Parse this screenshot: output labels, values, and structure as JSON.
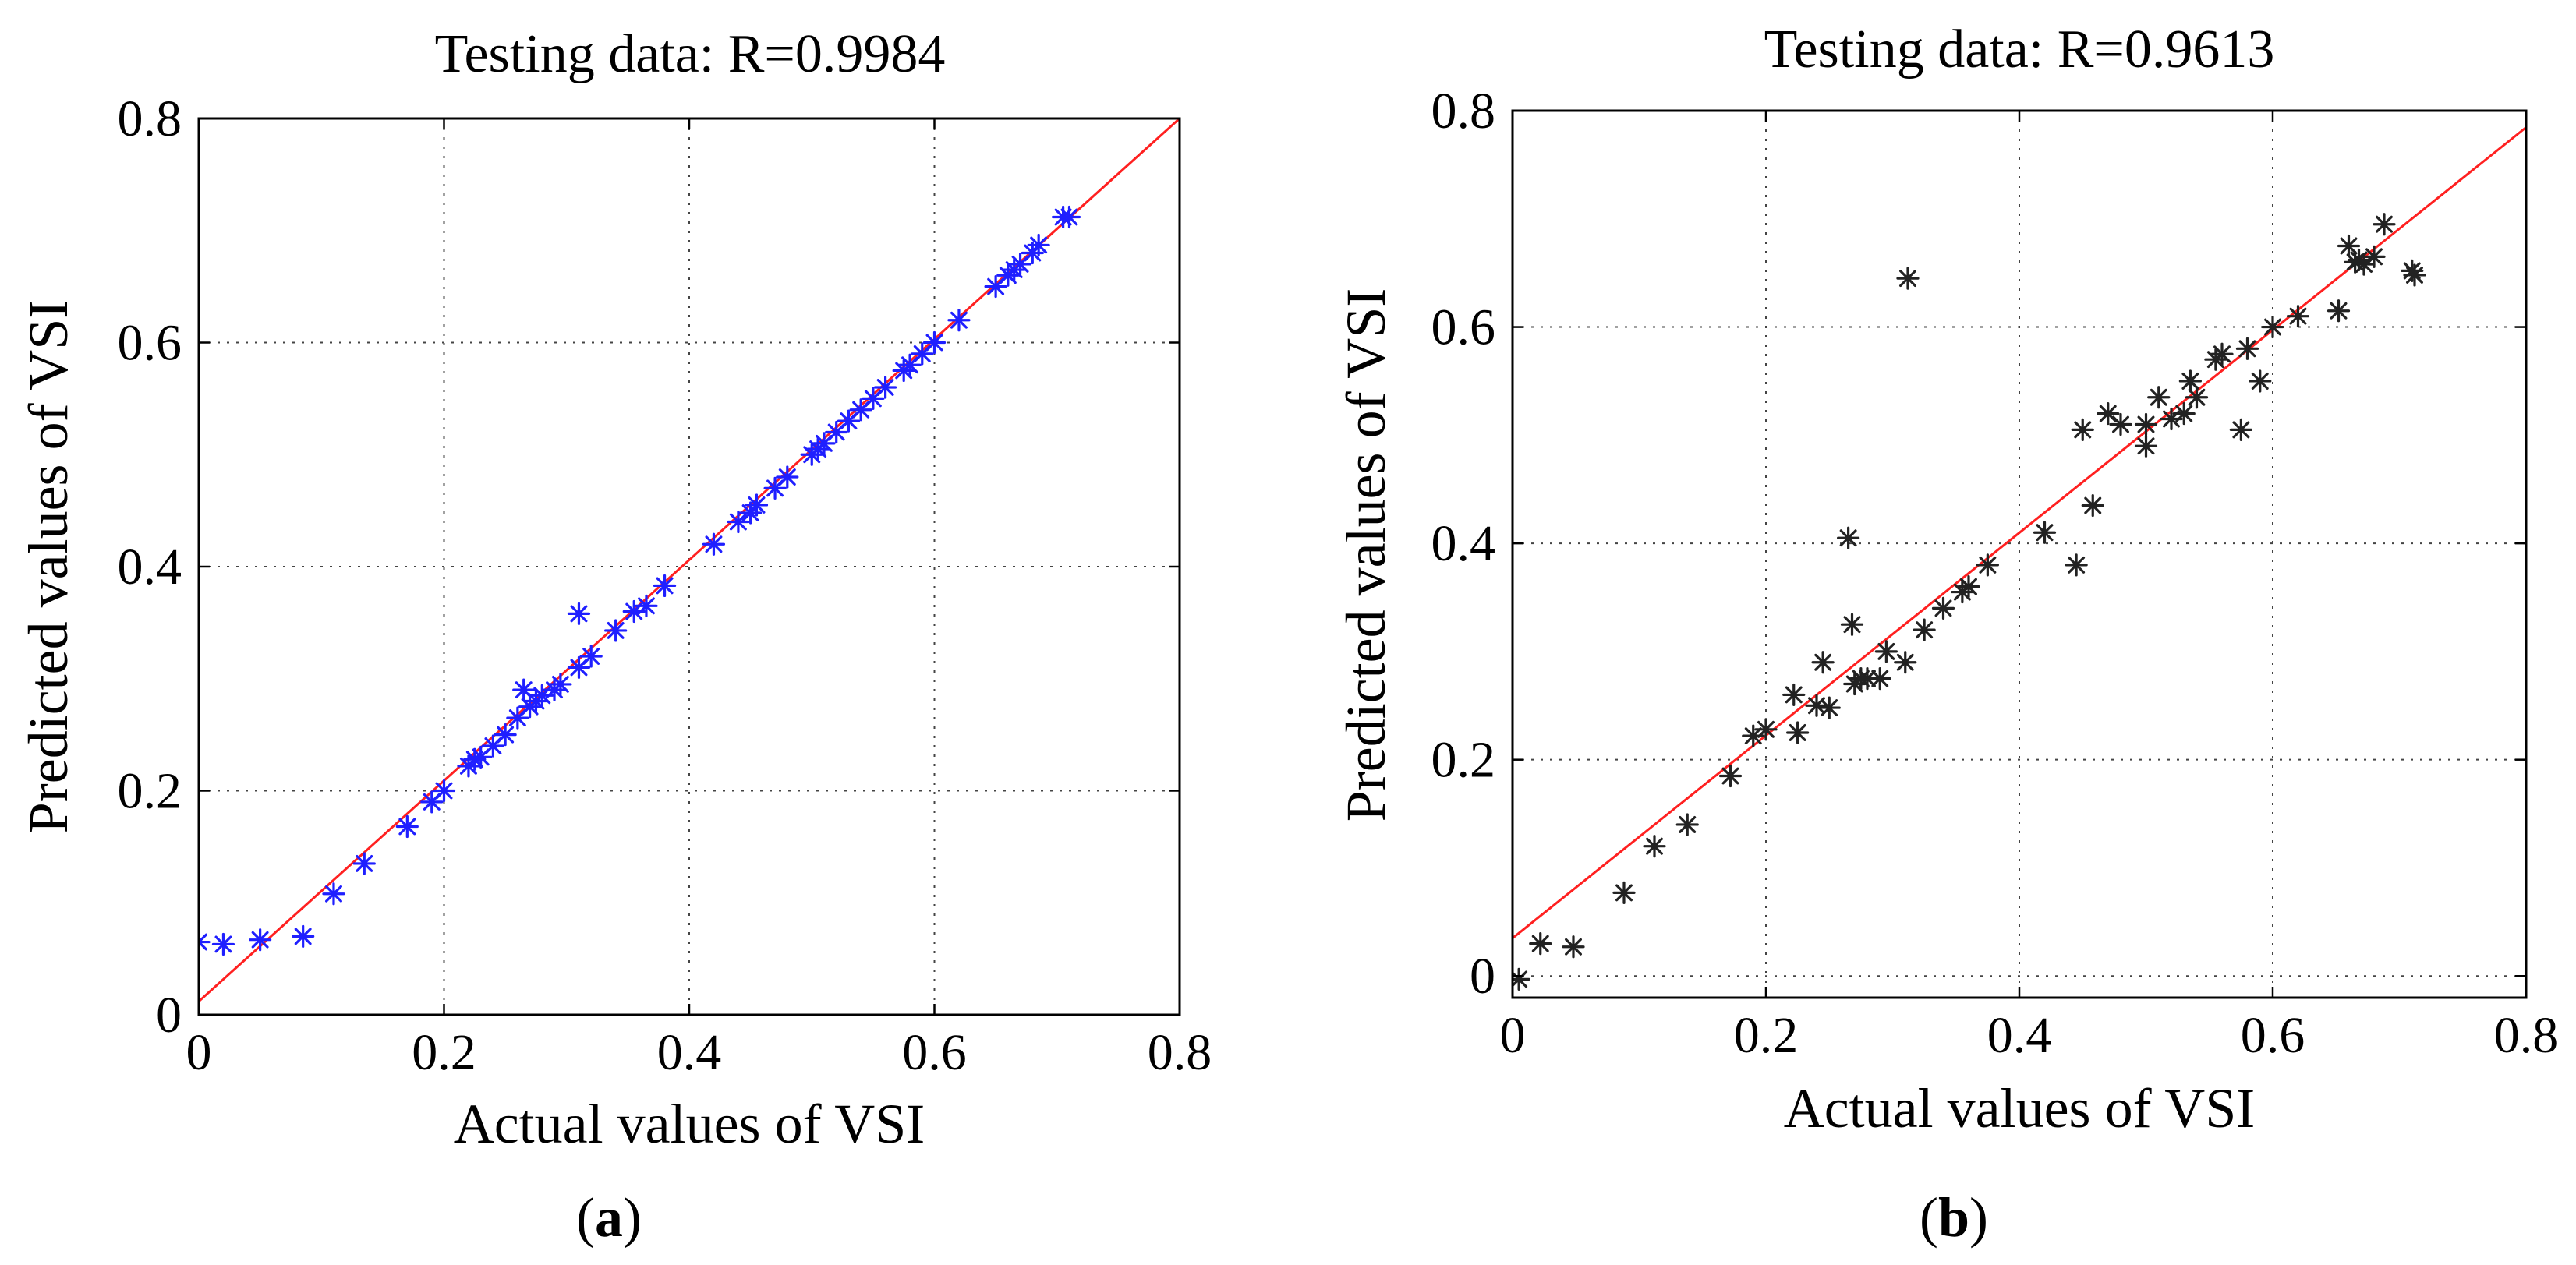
{
  "chart_data": [
    {
      "type": "scatter",
      "panel_label": "a",
      "title": "Testing data: R=0.9984",
      "xlabel": "Actual values of VSI",
      "ylabel": "Predicted values of VSI",
      "xlim": [
        0,
        0.8
      ],
      "ylim": [
        0,
        0.8
      ],
      "xticks": [
        0,
        0.2,
        0.4,
        0.6,
        0.8
      ],
      "yticks": [
        0,
        0.2,
        0.4,
        0.6,
        0.8
      ],
      "xtick_labels": [
        "0",
        "0.2",
        "0.4",
        "0.6",
        "0.8"
      ],
      "ytick_labels": [
        "0",
        "0.2",
        "0.4",
        "0.6",
        "0.8"
      ],
      "grid": true,
      "marker": "*",
      "marker_color": "#1f1fff",
      "fit_line": {
        "intercept": 0.012,
        "slope": 0.985,
        "color": "#ff2020"
      },
      "points": {
        "x": [
          0.0,
          0.02,
          0.05,
          0.085,
          0.11,
          0.135,
          0.17,
          0.19,
          0.2,
          0.22,
          0.225,
          0.23,
          0.24,
          0.25,
          0.26,
          0.265,
          0.27,
          0.275,
          0.28,
          0.29,
          0.295,
          0.31,
          0.31,
          0.32,
          0.34,
          0.355,
          0.365,
          0.38,
          0.42,
          0.44,
          0.45,
          0.455,
          0.47,
          0.48,
          0.5,
          0.505,
          0.51,
          0.52,
          0.53,
          0.54,
          0.55,
          0.56,
          0.575,
          0.58,
          0.59,
          0.6,
          0.62,
          0.65,
          0.66,
          0.665,
          0.67,
          0.68,
          0.685,
          0.705,
          0.71
        ],
        "y": [
          0.065,
          0.063,
          0.067,
          0.07,
          0.108,
          0.135,
          0.168,
          0.19,
          0.2,
          0.222,
          0.228,
          0.23,
          0.24,
          0.25,
          0.265,
          0.29,
          0.275,
          0.28,
          0.285,
          0.29,
          0.295,
          0.31,
          0.358,
          0.32,
          0.343,
          0.36,
          0.365,
          0.383,
          0.42,
          0.44,
          0.448,
          0.455,
          0.47,
          0.48,
          0.5,
          0.505,
          0.51,
          0.52,
          0.53,
          0.54,
          0.55,
          0.56,
          0.575,
          0.58,
          0.59,
          0.6,
          0.62,
          0.65,
          0.66,
          0.665,
          0.67,
          0.68,
          0.687,
          0.712,
          0.712
        ]
      }
    },
    {
      "type": "scatter",
      "panel_label": "b",
      "title": "Testing data: R=0.9613",
      "xlabel": "Actual values of VSI",
      "ylabel": "Predicted values of VSI",
      "xlim": [
        0,
        0.8
      ],
      "ylim": [
        -0.02,
        0.8
      ],
      "xticks": [
        0,
        0.2,
        0.4,
        0.6,
        0.8
      ],
      "yticks": [
        0,
        0.2,
        0.4,
        0.6,
        0.8
      ],
      "xtick_labels": [
        "0",
        "0.2",
        "0.4",
        "0.6",
        "0.8"
      ],
      "ytick_labels": [
        "0",
        "0.2",
        "0.4",
        "0.6",
        "0.8"
      ],
      "grid": true,
      "marker": "*",
      "marker_color": "#222222",
      "fit_line": {
        "intercept": 0.035,
        "slope": 0.937,
        "color": "#ff2020"
      },
      "points": {
        "x": [
          0.005,
          0.022,
          0.048,
          0.088,
          0.112,
          0.138,
          0.172,
          0.19,
          0.2,
          0.222,
          0.225,
          0.24,
          0.245,
          0.25,
          0.265,
          0.268,
          0.27,
          0.275,
          0.28,
          0.29,
          0.295,
          0.31,
          0.312,
          0.325,
          0.34,
          0.355,
          0.36,
          0.375,
          0.42,
          0.445,
          0.45,
          0.458,
          0.47,
          0.48,
          0.5,
          0.5,
          0.51,
          0.52,
          0.53,
          0.535,
          0.54,
          0.555,
          0.56,
          0.575,
          0.58,
          0.59,
          0.6,
          0.62,
          0.652,
          0.66,
          0.665,
          0.668,
          0.672,
          0.68,
          0.688,
          0.71,
          0.712
        ],
        "y": [
          -0.003,
          0.03,
          0.027,
          0.077,
          0.12,
          0.14,
          0.185,
          0.222,
          0.228,
          0.26,
          0.225,
          0.25,
          0.29,
          0.248,
          0.405,
          0.325,
          0.27,
          0.275,
          0.275,
          0.275,
          0.3,
          0.29,
          0.645,
          0.32,
          0.34,
          0.355,
          0.36,
          0.38,
          0.41,
          0.38,
          0.505,
          0.435,
          0.52,
          0.51,
          0.49,
          0.51,
          0.535,
          0.515,
          0.52,
          0.55,
          0.535,
          0.57,
          0.575,
          0.505,
          0.58,
          0.55,
          0.6,
          0.61,
          0.615,
          0.675,
          0.66,
          0.662,
          0.658,
          0.665,
          0.695,
          0.652,
          0.648
        ]
      }
    }
  ]
}
